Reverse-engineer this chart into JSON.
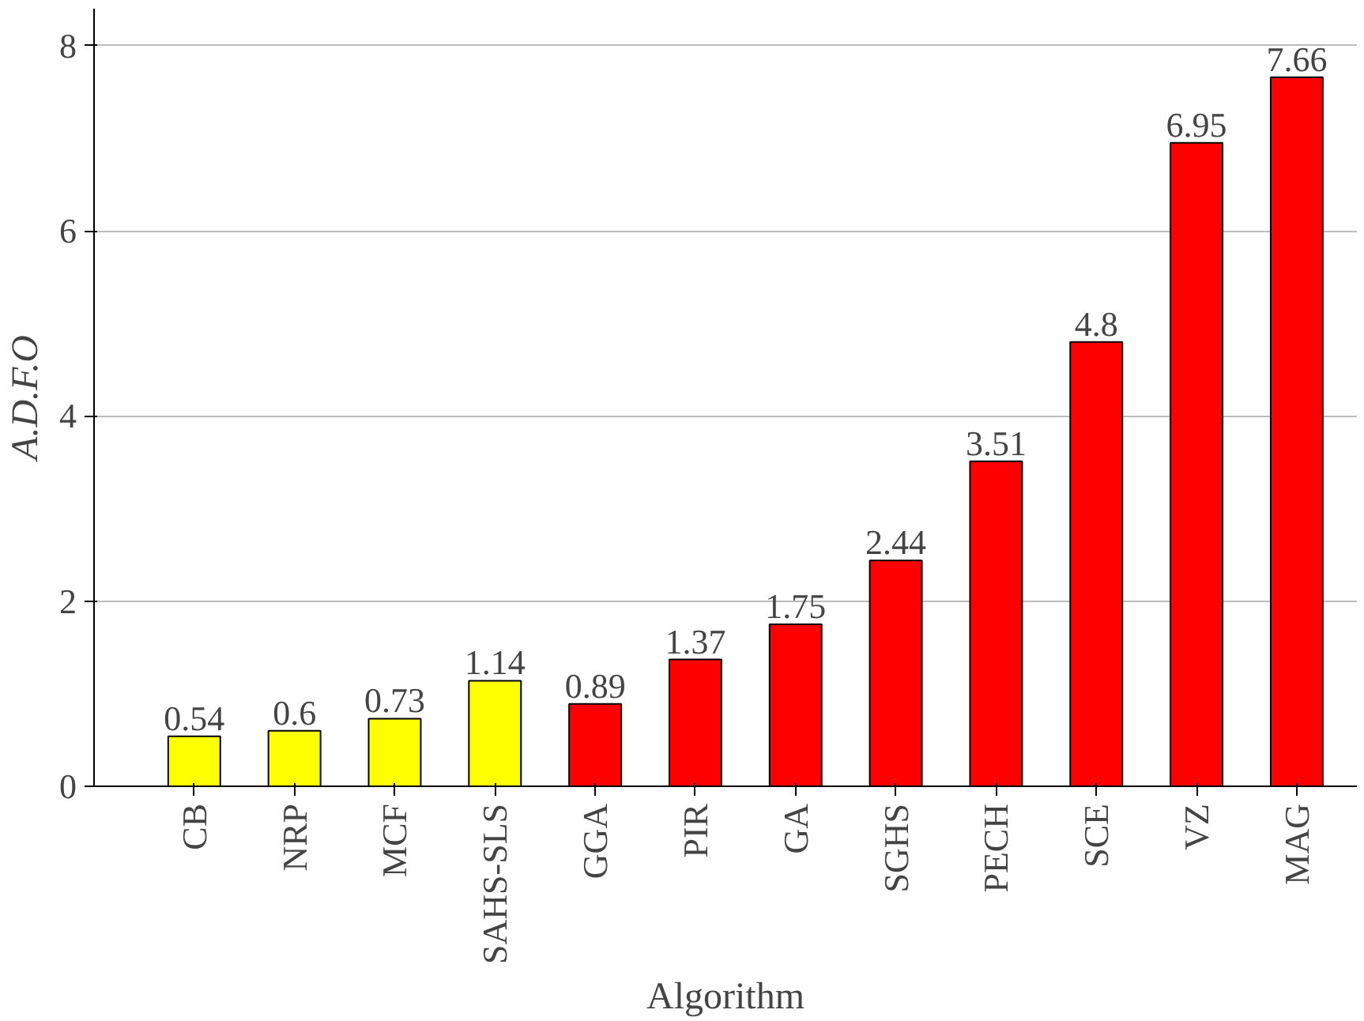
{
  "chart_data": {
    "type": "bar",
    "xlabel": "Algorithm",
    "ylabel": "A.D.F.O",
    "categories": [
      "CB",
      "NRP",
      "MCF",
      "SAHS-SLS",
      "GGA",
      "PIR",
      "GA",
      "SGHS",
      "PECH",
      "SCE",
      "VZ",
      "MAG"
    ],
    "values": [
      0.54,
      0.6,
      0.73,
      1.14,
      0.89,
      1.37,
      1.75,
      2.44,
      3.51,
      4.8,
      6.95,
      7.66
    ],
    "colors": [
      "#ffff00",
      "#ffff00",
      "#ffff00",
      "#ffff00",
      "#ff0000",
      "#ff0000",
      "#ff0000",
      "#ff0000",
      "#ff0000",
      "#ff0000",
      "#ff0000",
      "#ff0000"
    ],
    "ylim": [
      0,
      8.4
    ],
    "yticks": [
      0,
      2,
      4,
      6,
      8
    ],
    "grid": "y",
    "data_labels": true
  }
}
